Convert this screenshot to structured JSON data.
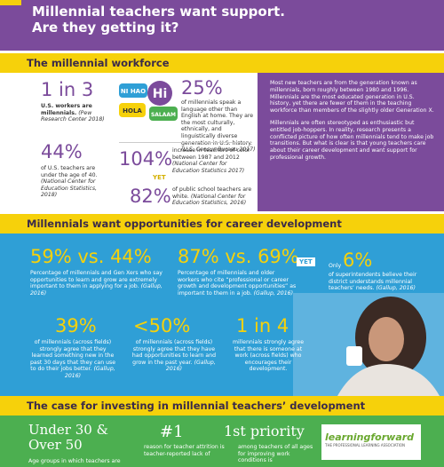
{
  "header": {
    "title_line1": "Millennial teachers want support.",
    "title_line2": "Are they getting it?"
  },
  "workforce": {
    "heading": "The millennial workforce",
    "stats": [
      {
        "number": "1 in 3",
        "text": "U.S. workers are millennials.",
        "source": "(Pew Research Center 2018)"
      },
      {
        "number": "44%",
        "text": "of U.S. teachers are under the age of 40.",
        "source": "(National Center for Education Statistics, 2018)"
      },
      {
        "number": "25%",
        "text": "of millennials speak a language other than English at home. They are the most culturally, ethnically, and linguistically diverse generation in U.S. history.",
        "source": "(U.S. Census Bureau 2017)"
      },
      {
        "number": "104%",
        "text": "increase in teachers of color between 1987 and 2012",
        "source": "(National Center for Education Statistics 2017)"
      },
      {
        "number": "82%",
        "text": "of public school teachers are white.",
        "source": "(National Center for Education Statistics, 2016)"
      }
    ],
    "bubbles": [
      "NI HAO",
      "Hi",
      "HOLA",
      "SALAAM"
    ],
    "yet": "YET",
    "paragraphs": [
      "Most new teachers are from the generation known as millennials, born roughly between 1980 and 1996. Millennials are the most educated generation in U.S. history, yet there are fewer of them in the teaching workforce than members of the slightly older Generation X.",
      "Millennials are often stereotyped as enthusiastic but entitled job-hoppers. In reality, research presents a conflicted picture of how often millennials tend to make job transitions. But what is clear is that young teachers care about their career development and want support for professional growth."
    ]
  },
  "career": {
    "heading": "Millennials want opportunities for career development",
    "stats": [
      {
        "number": "59% vs. 44%",
        "text": "Percentage of millennials and Gen Xers who say opportunities to learn and grow are extremely important to them in applying for a job.",
        "source": "(Gallup, 2016)"
      },
      {
        "number": "87% vs. 69%",
        "text": "Percentage of millennials and older workers who cite “professional or career growth and development opportunities” as important to them in a job.",
        "source": "(Gallup, 2016)"
      },
      {
        "number": "6%",
        "text": "of superintendents believe their district understands millennial teachers’ needs.",
        "source": "(Gallup, 2016)"
      },
      {
        "number": "39%",
        "text": "of millennials (across fields) strongly agree that they learned something new in the past 30 days that they can use to do their jobs better.",
        "source": "(Gallup, 2016)"
      },
      {
        "number": "<50%",
        "text": "of millennials (across fields) strongly agree that they have had opportunities to learn and grow in the past year.",
        "source": "(Gallup, 2016)"
      },
      {
        "number": "1 in 4",
        "text": "millennials strongly agree that there is someone at work (across fields) who encourages their development.",
        "source": ""
      }
    ],
    "yet": "YET",
    "only": "Only"
  },
  "case": {
    "heading": "The case for investing in millennial teachers’ development",
    "stats": [
      {
        "number": "Under 30 & Over 50",
        "text": "Age groups in which teachers are"
      },
      {
        "number": "#1",
        "text": "reason for teacher attrition is teacher-reported lack of"
      },
      {
        "number": "1st priority",
        "text": "among teachers of all ages for improving work conditions is"
      }
    ],
    "logo": {
      "name": "learningforward",
      "tagline": "THE PROFESSIONAL LEARNING ASSOCIATION"
    }
  }
}
